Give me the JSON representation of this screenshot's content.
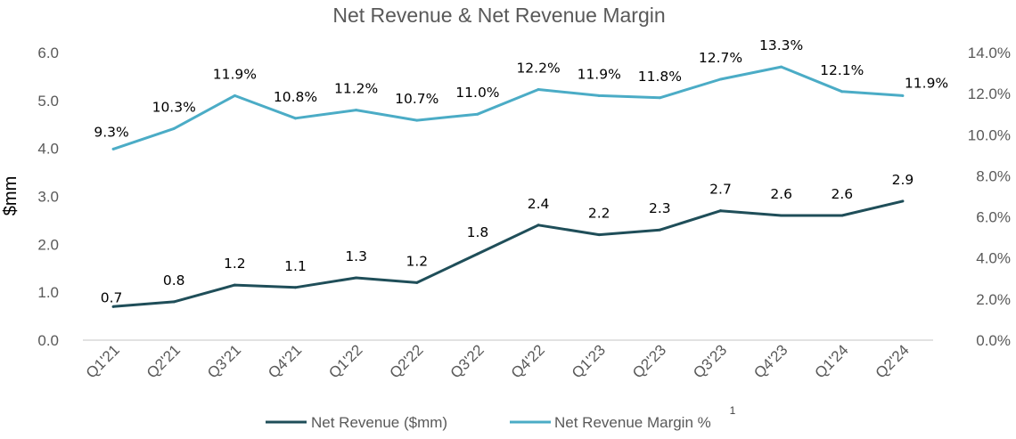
{
  "chart_data": {
    "type": "line",
    "title": "Net Revenue & Net Revenue Margin",
    "ylabel": "$mm",
    "ylim": [
      0,
      6
    ],
    "y2lim": [
      0,
      14
    ],
    "yticks": [
      "0.0",
      "1.0",
      "2.0",
      "3.0",
      "4.0",
      "5.0",
      "6.0"
    ],
    "y2ticks": [
      "0.0%",
      "2.0%",
      "4.0%",
      "6.0%",
      "8.0%",
      "10.0%",
      "12.0%",
      "14.0%"
    ],
    "categories": [
      "Q1'21",
      "Q2'21",
      "Q3'21",
      "Q4'21",
      "Q1'22",
      "Q2'22",
      "Q3'22",
      "Q4'22",
      "Q1'23",
      "Q2'23",
      "Q3'23",
      "Q4'23",
      "Q1'24",
      "Q2'24"
    ],
    "grid": false,
    "legend_position": "bottom",
    "footnote": "1",
    "series": [
      {
        "name": "Net Revenue ($mm)",
        "axis": "left",
        "color": "#1f4e59",
        "values": [
          0.7,
          0.8,
          1.15,
          1.1,
          1.3,
          1.2,
          1.8,
          2.4,
          2.2,
          2.3,
          2.7,
          2.6,
          2.6,
          2.9
        ],
        "labels": [
          "0.7",
          "0.8",
          "1.2",
          "1.1",
          "1.3",
          "1.2",
          "1.8",
          "2.4",
          "2.2",
          "2.3",
          "2.7",
          "2.6",
          "2.6",
          "2.9"
        ]
      },
      {
        "name": "Net Revenue Margin %",
        "axis": "right",
        "color": "#4bacc6",
        "values": [
          9.3,
          10.3,
          11.9,
          10.8,
          11.2,
          10.7,
          11.0,
          12.2,
          11.9,
          11.8,
          12.7,
          13.3,
          12.1,
          11.9
        ],
        "labels": [
          "9.3%",
          "10.3%",
          "11.9%",
          "10.8%",
          "11.2%",
          "10.7%",
          "11.0%",
          "12.2%",
          "11.9%",
          "11.8%",
          "12.7%",
          "13.3%",
          "12.1%",
          "11.9%"
        ]
      }
    ]
  }
}
